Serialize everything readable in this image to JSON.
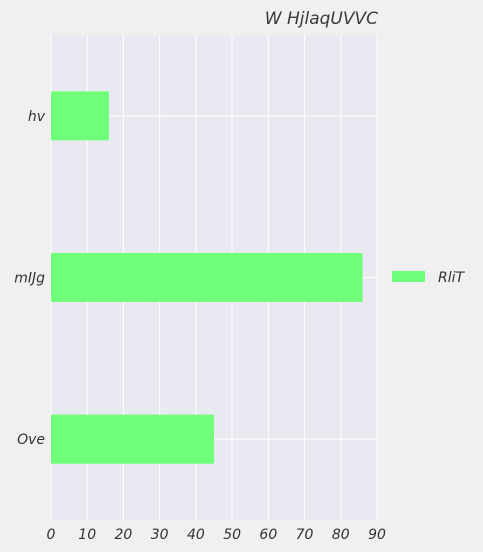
{
  "chart_data": {
    "type": "bar",
    "orientation": "horizontal",
    "title": "W  HjlaqUVVC",
    "xlabel": "",
    "ylabel": "",
    "categories": [
      "hv",
      "mIJg",
      "Ove"
    ],
    "series": [
      {
        "name": "RliT",
        "values": [
          16,
          86,
          45
        ],
        "color": "#70ff7a"
      }
    ],
    "xlim": [
      0,
      90
    ],
    "x_ticks": [
      0,
      10,
      20,
      30,
      40,
      50,
      60,
      70,
      80,
      90
    ],
    "grid": true,
    "legend_position": "right",
    "colors": {
      "plot_background": "#e9e9f2",
      "page_background": "#f0f0f0",
      "grid": "#ffffff",
      "bar": "#70ff7a"
    }
  }
}
